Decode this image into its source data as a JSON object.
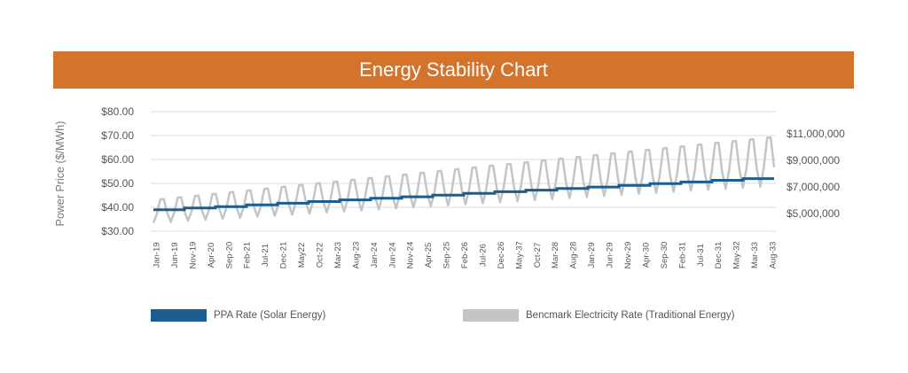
{
  "chart_data": {
    "type": "line",
    "title": "Energy Stability Chart",
    "ylabel": "Power Price ($/MWh)",
    "y_left_ticks": [
      "$30.00",
      "$40.00",
      "$50.00",
      "$60.00",
      "$70.00",
      "$80.00"
    ],
    "ylim_left": [
      30,
      80
    ],
    "y_right_ticks": [
      "$5,000,000",
      "$7,000,000",
      "$9,000,000",
      "$11,000,000"
    ],
    "ylim_right": [
      3666667,
      12666667
    ],
    "x_ticks": [
      "Jan-19",
      "Jun-19",
      "Nov-19",
      "Apr-20",
      "Sep-20",
      "Feb-21",
      "Jul-21",
      "Dec-21",
      "May22",
      "Oct-22",
      "Mar-23",
      "Aug-23",
      "Jan-24",
      "Jun-24",
      "Nov-24",
      "Apr-25",
      "Sep-25",
      "Feb-26",
      "Jul-26",
      "Dec-26",
      "May-37",
      "Oct-27",
      "Mar-28",
      "Aug-28",
      "Jan-29",
      "Jun-29",
      "Nov-29",
      "Apr-30",
      "Sep-30",
      "Feb-31",
      "Jul-31",
      "Dec-31",
      "May-32",
      "Mar-33",
      "Aug-33"
    ],
    "grid": true,
    "legend_placement": "bottom",
    "series": [
      {
        "name": "PPA Rate (Solar Energy)",
        "color": "#1c5d8f",
        "axis": "left",
        "step_values": [
          39,
          39.7,
          40.3,
          41,
          41.7,
          42.4,
          43.1,
          43.8,
          44.4,
          45.1,
          45.8,
          46.5,
          47.2,
          47.9,
          48.5,
          49.2,
          49.9,
          50.6,
          51.3,
          52
        ]
      },
      {
        "name": "Bencmark Electricity Rate (Traditional Energy)",
        "color": "#c3c5c7",
        "axis": "left",
        "period_months": 5,
        "base_start": 33.5,
        "base_end": 49,
        "peak_start": 44,
        "peak_end": 71.5
      }
    ]
  }
}
